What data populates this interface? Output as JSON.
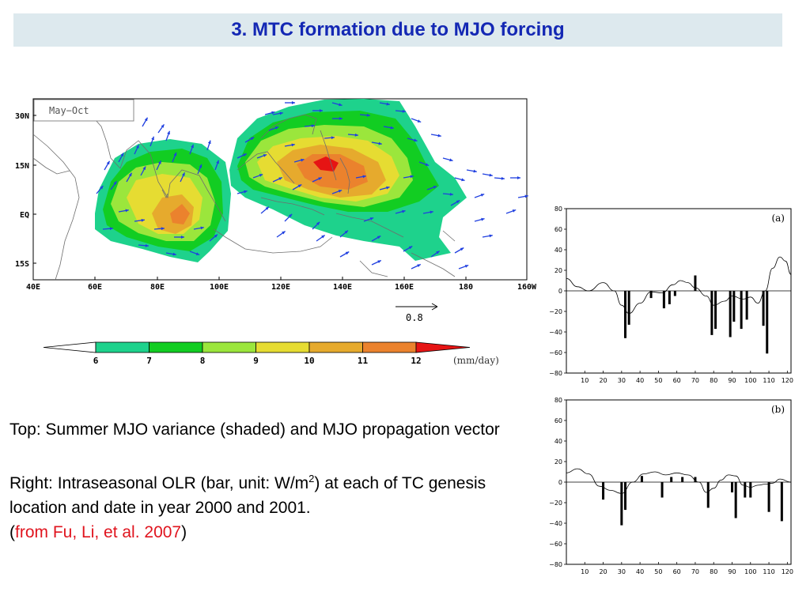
{
  "slide_title": "3. MTC formation due to MJO forcing",
  "map": {
    "season_label": "May−Oct",
    "lon_labels": [
      "40E",
      "60E",
      "80E",
      "100E",
      "120E",
      "140E",
      "160E",
      "180",
      "160W"
    ],
    "lat_labels": [
      "30N",
      "15N",
      "EQ",
      "15S"
    ],
    "vector_scale_label": "0.8"
  },
  "colorbar": {
    "ticks": [
      "6",
      "7",
      "8",
      "9",
      "10",
      "11",
      "12"
    ],
    "unit": "(mm/day)",
    "colors": [
      "#ffffff",
      "#1ed28c",
      "#12cd22",
      "#9be63c",
      "#e6dc32",
      "#e6aa2d",
      "#eb822d",
      "#e61414"
    ]
  },
  "caption": {
    "top_text": "Top: Summer MJO variance (shaded) and MJO propagation vector",
    "right_prefix": "Right:  Intraseasonal OLR (bar, unit: W/m",
    "right_sup": "2",
    "right_suffix": ") at each of TC genesis location and date in year 2000 and 2001.",
    "src_open": "(",
    "src_text": "from Fu, Li, et al. 2007",
    "src_close": ")"
  },
  "chart_data": [
    {
      "type": "bar",
      "panel_label": "(a)",
      "xlim": [
        0,
        122
      ],
      "ylim": [
        -80,
        80
      ],
      "x_ticks": [
        10,
        20,
        30,
        40,
        50,
        60,
        70,
        80,
        90,
        100,
        110,
        120
      ],
      "y_ticks": [
        80,
        60,
        40,
        20,
        0,
        -20,
        -40,
        -60,
        -80
      ],
      "bars": [
        {
          "x": 32,
          "y": -46
        },
        {
          "x": 34,
          "y": -33
        },
        {
          "x": 46,
          "y": -7
        },
        {
          "x": 53,
          "y": -17
        },
        {
          "x": 56,
          "y": -13
        },
        {
          "x": 59,
          "y": -5
        },
        {
          "x": 70,
          "y": 15
        },
        {
          "x": 79,
          "y": -43
        },
        {
          "x": 81,
          "y": -37
        },
        {
          "x": 89,
          "y": -45
        },
        {
          "x": 91,
          "y": -30
        },
        {
          "x": 95,
          "y": -37
        },
        {
          "x": 98,
          "y": -28
        },
        {
          "x": 107,
          "y": -34
        },
        {
          "x": 109,
          "y": -61
        }
      ],
      "curve": [
        {
          "x": 0,
          "y": 12
        },
        {
          "x": 6,
          "y": 4
        },
        {
          "x": 12,
          "y": 0
        },
        {
          "x": 20,
          "y": 8
        },
        {
          "x": 26,
          "y": 0
        },
        {
          "x": 30,
          "y": -14
        },
        {
          "x": 34,
          "y": -22
        },
        {
          "x": 40,
          "y": -12
        },
        {
          "x": 46,
          "y": -1
        },
        {
          "x": 52,
          "y": -2
        },
        {
          "x": 58,
          "y": 6
        },
        {
          "x": 62,
          "y": 10
        },
        {
          "x": 66,
          "y": 8
        },
        {
          "x": 70,
          "y": 3
        },
        {
          "x": 76,
          "y": -5
        },
        {
          "x": 80,
          "y": -14
        },
        {
          "x": 86,
          "y": -10
        },
        {
          "x": 90,
          "y": -5
        },
        {
          "x": 96,
          "y": -8
        },
        {
          "x": 100,
          "y": -6
        },
        {
          "x": 104,
          "y": -12
        },
        {
          "x": 108,
          "y": 0
        },
        {
          "x": 112,
          "y": 22
        },
        {
          "x": 116,
          "y": 33
        },
        {
          "x": 119,
          "y": 29
        },
        {
          "x": 122,
          "y": 16
        }
      ]
    },
    {
      "type": "bar",
      "panel_label": "(b)",
      "xlim": [
        0,
        122
      ],
      "ylim": [
        -80,
        80
      ],
      "x_ticks": [
        10,
        20,
        30,
        40,
        50,
        60,
        70,
        80,
        90,
        100,
        110,
        120
      ],
      "y_ticks": [
        80,
        60,
        40,
        20,
        0,
        -20,
        -40,
        -60,
        -80
      ],
      "bars": [
        {
          "x": 20,
          "y": -17
        },
        {
          "x": 30,
          "y": -42
        },
        {
          "x": 32,
          "y": -27
        },
        {
          "x": 41,
          "y": 6
        },
        {
          "x": 52,
          "y": -15
        },
        {
          "x": 57,
          "y": 5
        },
        {
          "x": 63,
          "y": 5
        },
        {
          "x": 70,
          "y": 5
        },
        {
          "x": 77,
          "y": -25
        },
        {
          "x": 90,
          "y": -10
        },
        {
          "x": 92,
          "y": -35
        },
        {
          "x": 97,
          "y": -15
        },
        {
          "x": 100,
          "y": -15
        },
        {
          "x": 110,
          "y": -29
        },
        {
          "x": 117,
          "y": -38
        }
      ],
      "curve": [
        {
          "x": 0,
          "y": 9
        },
        {
          "x": 6,
          "y": 13
        },
        {
          "x": 12,
          "y": 8
        },
        {
          "x": 18,
          "y": -4
        },
        {
          "x": 24,
          "y": -8
        },
        {
          "x": 30,
          "y": -11
        },
        {
          "x": 36,
          "y": 0
        },
        {
          "x": 42,
          "y": 8
        },
        {
          "x": 48,
          "y": 10
        },
        {
          "x": 54,
          "y": 7
        },
        {
          "x": 60,
          "y": 9
        },
        {
          "x": 66,
          "y": 7
        },
        {
          "x": 72,
          "y": 0
        },
        {
          "x": 76,
          "y": -10
        },
        {
          "x": 80,
          "y": -6
        },
        {
          "x": 84,
          "y": 2
        },
        {
          "x": 88,
          "y": 7
        },
        {
          "x": 92,
          "y": 6
        },
        {
          "x": 96,
          "y": -3
        },
        {
          "x": 100,
          "y": -5
        },
        {
          "x": 104,
          "y": -3
        },
        {
          "x": 108,
          "y": -2
        },
        {
          "x": 112,
          "y": -1
        },
        {
          "x": 116,
          "y": 3
        },
        {
          "x": 122,
          "y": 0
        }
      ]
    }
  ]
}
